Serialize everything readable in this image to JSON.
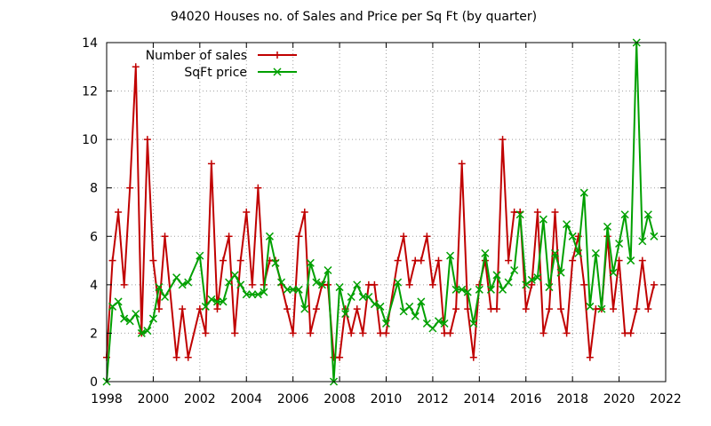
{
  "chart_data": {
    "type": "line",
    "title": "94020 Houses no. of Sales and Price per Sq Ft (by quarter)",
    "xlabel": "",
    "ylabel": "",
    "xlim": [
      1998,
      2022
    ],
    "ylim": [
      0,
      14
    ],
    "x_ticks": [
      1998,
      2000,
      2002,
      2004,
      2006,
      2008,
      2010,
      2012,
      2014,
      2016,
      2018,
      2020,
      2022
    ],
    "y_ticks": [
      0,
      2,
      4,
      6,
      8,
      10,
      12,
      14
    ],
    "grid": true,
    "legend_position": "top-left",
    "series": [
      {
        "name": "Number of sales",
        "color": "#c00000",
        "marker": "plus",
        "x": [
          1998.0,
          1998.25,
          1998.5,
          1998.75,
          1999.0,
          1999.25,
          1999.5,
          1999.75,
          2000.0,
          2000.25,
          2000.5,
          2001.0,
          2001.25,
          2001.5,
          2002.0,
          2002.25,
          2002.5,
          2002.75,
          2003.0,
          2003.25,
          2003.5,
          2003.75,
          2004.0,
          2004.25,
          2004.5,
          2004.75,
          2005.0,
          2005.25,
          2005.5,
          2005.75,
          2006.0,
          2006.25,
          2006.5,
          2006.75,
          2007.0,
          2007.25,
          2007.5,
          2007.75,
          2008.0,
          2008.25,
          2008.5,
          2008.75,
          2009.0,
          2009.25,
          2009.5,
          2009.75,
          2010.0,
          2010.5,
          2010.75,
          2011.0,
          2011.25,
          2011.5,
          2011.75,
          2012.0,
          2012.25,
          2012.5,
          2012.75,
          2013.0,
          2013.25,
          2013.5,
          2013.75,
          2014.0,
          2014.25,
          2014.5,
          2014.75,
          2015.0,
          2015.25,
          2015.5,
          2015.75,
          2016.0,
          2016.25,
          2016.5,
          2016.75,
          2017.0,
          2017.25,
          2017.5,
          2017.75,
          2018.0,
          2018.25,
          2018.5,
          2018.75,
          2019.0,
          2019.25,
          2019.5,
          2019.75,
          2020.0,
          2020.25,
          2020.5,
          2020.75,
          2021.0,
          2021.25,
          2021.5
        ],
        "values": [
          1,
          5,
          7,
          4,
          8,
          13,
          2,
          10,
          5,
          3,
          6,
          1,
          3,
          1,
          3,
          2,
          9,
          3,
          5,
          6,
          2,
          5,
          7,
          4,
          8,
          4,
          5,
          5,
          4,
          3,
          2,
          6,
          7,
          2,
          3,
          4,
          4,
          1,
          1,
          3,
          2,
          3,
          2,
          4,
          4,
          2,
          2,
          5,
          6,
          4,
          5,
          5,
          6,
          4,
          5,
          2,
          2,
          3,
          9,
          3,
          1,
          4,
          5,
          3,
          3,
          10,
          5,
          7,
          7,
          3,
          4,
          7,
          2,
          3,
          7,
          3,
          2,
          5,
          6,
          4,
          1,
          3,
          3,
          6,
          3,
          5,
          2,
          2,
          3,
          5,
          3,
          4
        ]
      },
      {
        "name": "SqFt price",
        "color": "#00a000",
        "marker": "x",
        "x": [
          1998.0,
          1998.25,
          1998.5,
          1998.75,
          1999.0,
          1999.25,
          1999.5,
          1999.75,
          2000.0,
          2000.25,
          2000.5,
          2001.0,
          2001.25,
          2001.5,
          2002.0,
          2002.25,
          2002.5,
          2002.75,
          2003.0,
          2003.25,
          2003.5,
          2003.75,
          2004.0,
          2004.25,
          2004.5,
          2004.75,
          2005.0,
          2005.25,
          2005.5,
          2005.75,
          2006.0,
          2006.25,
          2006.5,
          2006.75,
          2007.0,
          2007.25,
          2007.5,
          2007.75,
          2008.0,
          2008.25,
          2008.5,
          2008.75,
          2009.0,
          2009.25,
          2009.5,
          2009.75,
          2010.0,
          2010.5,
          2010.75,
          2011.0,
          2011.25,
          2011.5,
          2011.75,
          2012.0,
          2012.25,
          2012.5,
          2012.75,
          2013.0,
          2013.25,
          2013.5,
          2013.75,
          2014.0,
          2014.25,
          2014.5,
          2014.75,
          2015.0,
          2015.25,
          2015.5,
          2015.75,
          2016.0,
          2016.25,
          2016.5,
          2016.75,
          2017.0,
          2017.25,
          2017.5,
          2017.75,
          2018.0,
          2018.25,
          2018.5,
          2018.75,
          2019.0,
          2019.25,
          2019.5,
          2019.75,
          2020.0,
          2020.25,
          2020.5,
          2020.75,
          2021.0,
          2021.25,
          2021.5
        ],
        "values": [
          0,
          3.1,
          3.3,
          2.6,
          2.5,
          2.8,
          2.0,
          2.1,
          2.6,
          3.9,
          3.5,
          4.3,
          4.0,
          4.1,
          5.2,
          3.1,
          3.4,
          3.3,
          3.3,
          4.1,
          4.4,
          4.0,
          3.6,
          3.6,
          3.6,
          3.7,
          6.0,
          4.9,
          4.1,
          3.8,
          3.8,
          3.8,
          3.0,
          4.9,
          4.1,
          4.0,
          4.6,
          0,
          3.9,
          2.8,
          3.5,
          4.0,
          3.5,
          3.5,
          3.2,
          3.1,
          2.4,
          4.1,
          2.9,
          3.1,
          2.7,
          3.3,
          2.4,
          2.2,
          2.5,
          2.4,
          5.2,
          3.8,
          3.8,
          3.7,
          2.4,
          3.8,
          5.3,
          3.8,
          4.4,
          3.8,
          4.1,
          4.6,
          6.9,
          4.0,
          4.2,
          4.3,
          6.7,
          3.9,
          5.3,
          4.5,
          6.5,
          6.0,
          5.3,
          7.8,
          3.1,
          5.3,
          3.0,
          6.4,
          4.5,
          5.7,
          6.9,
          5.0,
          14.0,
          5.8,
          6.9,
          6.0
        ]
      }
    ]
  }
}
